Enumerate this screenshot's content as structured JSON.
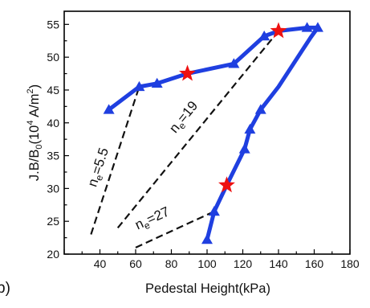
{
  "panel_label": "b)",
  "chart_data": {
    "type": "line",
    "xlabel": "Pedestal Height(kPa)",
    "ylabel": {
      "p1": "J.B/B",
      "sub0": "0",
      "p2": "(10",
      "sup4": "4",
      "p3": " A/m",
      "sup2": "2",
      "p4": ")"
    },
    "xlim": [
      20,
      180
    ],
    "ylim": [
      20,
      57
    ],
    "x_ticks": [
      "40",
      "60",
      "80",
      "100",
      "120",
      "140",
      "160",
      "180"
    ],
    "y_ticks": [
      "20",
      "25",
      "30",
      "35",
      "40",
      "45",
      "50",
      "55"
    ],
    "grid": false,
    "series": [
      {
        "color": "#1f3fe0",
        "marker": "triangle",
        "points": [
          {
            "x": 45,
            "y": 42.0,
            "m": true
          },
          {
            "x": 62,
            "y": 45.5,
            "m": true
          },
          {
            "x": 72,
            "y": 46.0,
            "m": true
          },
          {
            "x": 89,
            "y": 47.5,
            "m": false
          },
          {
            "x": 115,
            "y": 49.0,
            "m": true
          },
          {
            "x": 132,
            "y": 53.2,
            "m": true
          },
          {
            "x": 140,
            "y": 54.0,
            "m": false
          },
          {
            "x": 156,
            "y": 54.5,
            "m": true
          },
          {
            "x": 162,
            "y": 54.5,
            "m": true
          },
          {
            "x": 158,
            "y": 53.0,
            "m": false
          },
          {
            "x": 140,
            "y": 45.5,
            "m": false
          },
          {
            "x": 130,
            "y": 42.0,
            "m": true
          },
          {
            "x": 124,
            "y": 39.0,
            "m": true
          },
          {
            "x": 121,
            "y": 36.0,
            "m": true
          },
          {
            "x": 111,
            "y": 30.5,
            "m": false
          },
          {
            "x": 104,
            "y": 26.5,
            "m": true
          },
          {
            "x": 100,
            "y": 22.2,
            "m": true
          }
        ]
      }
    ],
    "highlight_points": [
      {
        "x": 89,
        "y": 47.5
      },
      {
        "x": 140,
        "y": 54.0
      },
      {
        "x": 111,
        "y": 30.5
      }
    ],
    "highlight_color": "#ee1111",
    "dashed_lines": [
      {
        "label": {
          "n": "n",
          "sub": "e",
          "val": "=5.5"
        },
        "from": {
          "x": 35,
          "y": 23.0
        },
        "to": {
          "x": 62,
          "y": 45.5
        }
      },
      {
        "label": {
          "n": "n",
          "sub": "e",
          "val": "=19"
        },
        "from": {
          "x": 50,
          "y": 24.0
        },
        "to": {
          "x": 140,
          "y": 54.0
        }
      },
      {
        "label": {
          "n": "n",
          "sub": "e",
          "val": "=27"
        },
        "from": {
          "x": 60,
          "y": 21.0
        },
        "to": {
          "x": 104,
          "y": 26.5
        }
      }
    ]
  }
}
